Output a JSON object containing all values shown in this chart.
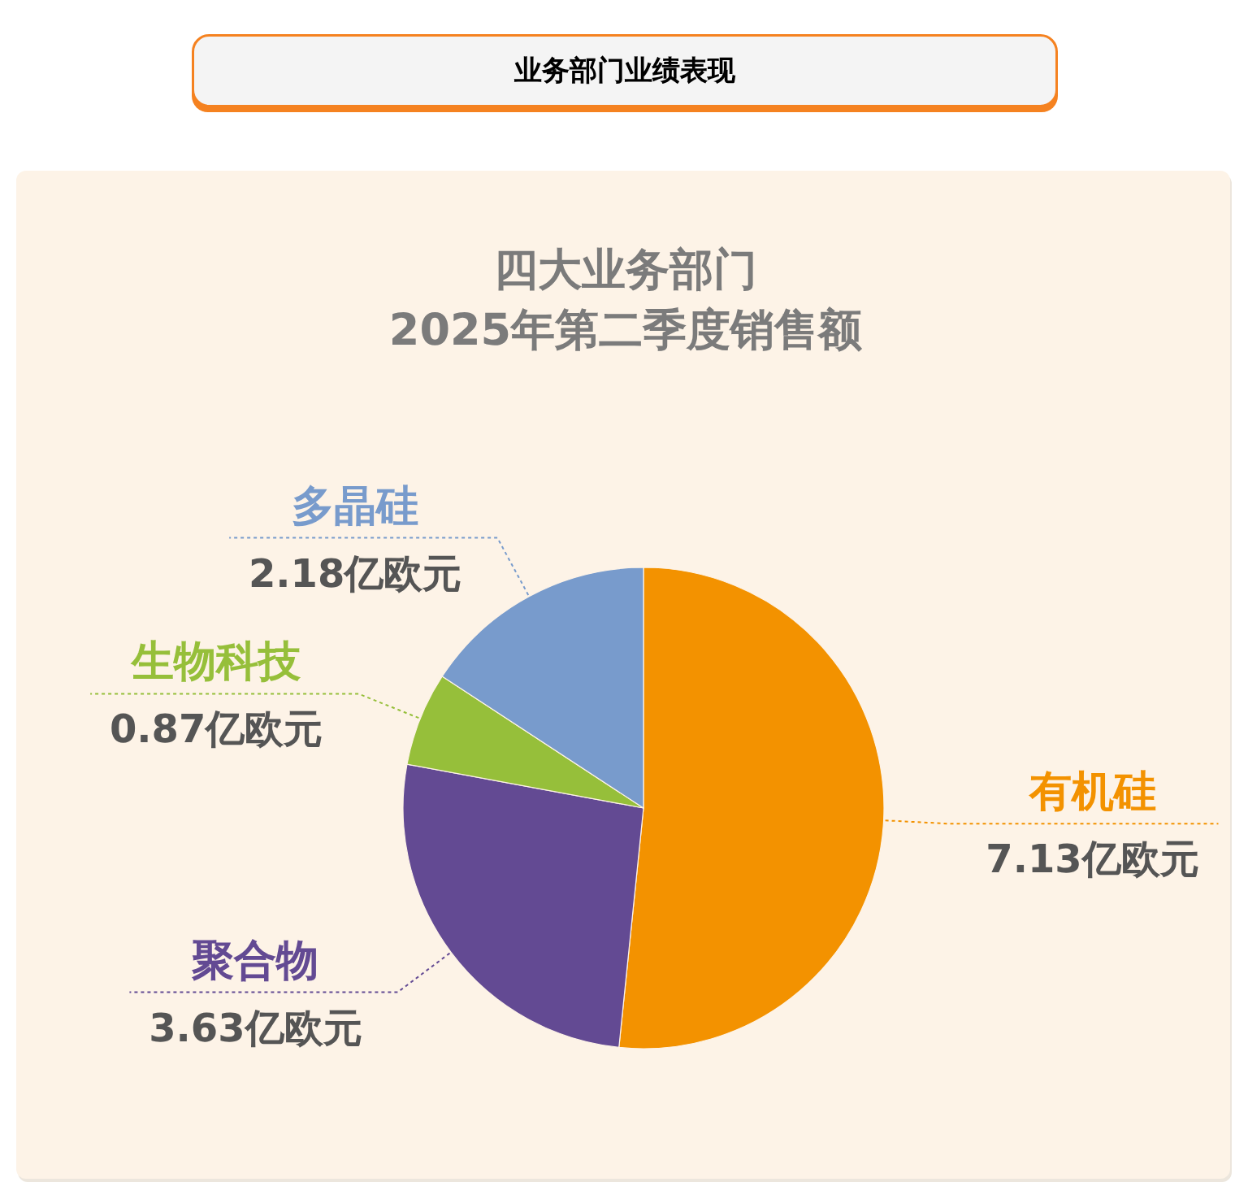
{
  "chart_data": {
    "type": "pie",
    "title": "业务部门业绩表现",
    "subtitle": "四大业务部门\n2025年第二季度销售额",
    "categories": [
      "有机硅",
      "聚合物",
      "生物科技",
      "多晶硅"
    ],
    "values": [
      7.13,
      3.63,
      0.87,
      2.18
    ],
    "colors": [
      "#f39200",
      "#634a93",
      "#96bf3a",
      "#789bcc"
    ],
    "value_labels": [
      "7.13亿欧元",
      "3.63亿欧元",
      "0.87亿欧元",
      "2.18亿欧元"
    ]
  }
}
